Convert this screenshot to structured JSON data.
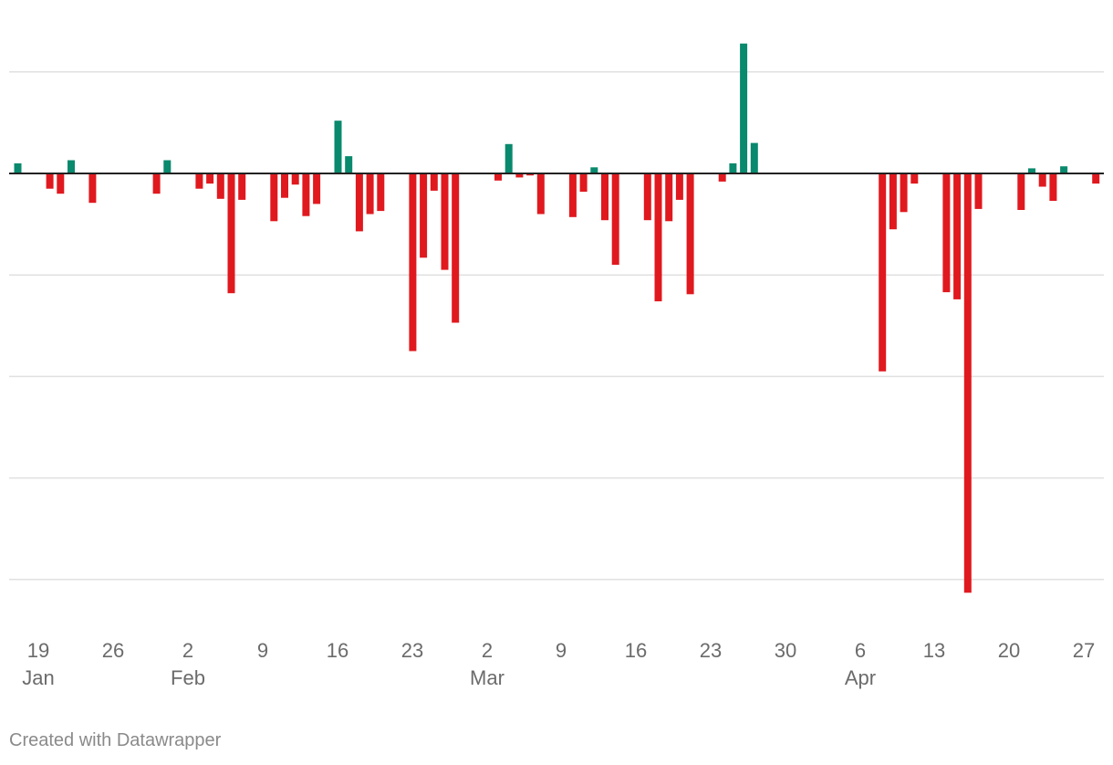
{
  "chart_data": {
    "type": "bar",
    "x_axis": {
      "ticks": [
        {
          "day": "19",
          "month": "Jan"
        },
        {
          "day": "26",
          "month": ""
        },
        {
          "day": "2",
          "month": "Feb"
        },
        {
          "day": "9",
          "month": ""
        },
        {
          "day": "16",
          "month": ""
        },
        {
          "day": "23",
          "month": ""
        },
        {
          "day": "2",
          "month": "Mar"
        },
        {
          "day": "9",
          "month": ""
        },
        {
          "day": "16",
          "month": ""
        },
        {
          "day": "23",
          "month": ""
        },
        {
          "day": "30",
          "month": ""
        },
        {
          "day": "6",
          "month": "Apr"
        },
        {
          "day": "13",
          "month": ""
        },
        {
          "day": "20",
          "month": ""
        },
        {
          "day": "27",
          "month": ""
        }
      ],
      "range": [
        "2020-01-18",
        "2020-04-28"
      ]
    },
    "y_axis": {
      "ylim": [
        -4.1,
        1.0
      ],
      "gridlines": [
        1,
        0,
        -1,
        -2,
        -3,
        -4
      ],
      "tick_labels_visible": false
    },
    "grid": true,
    "colors": {
      "positive": "#09896d",
      "negative": "#e0191f",
      "grid": "#e0e0e0",
      "zero_line": "#222222"
    },
    "series": [
      {
        "values": [
          {
            "date": "2020-01-18",
            "value": 0.1
          },
          {
            "date": "2020-01-21",
            "value": -0.15
          },
          {
            "date": "2020-01-22",
            "value": -0.2
          },
          {
            "date": "2020-01-23",
            "value": 0.13
          },
          {
            "date": "2020-01-25",
            "value": -0.29
          },
          {
            "date": "2020-01-31",
            "value": -0.2
          },
          {
            "date": "2020-02-01",
            "value": 0.13
          },
          {
            "date": "2020-02-04",
            "value": -0.15
          },
          {
            "date": "2020-02-05",
            "value": -0.1
          },
          {
            "date": "2020-02-06",
            "value": -0.25
          },
          {
            "date": "2020-02-07",
            "value": -1.18
          },
          {
            "date": "2020-02-08",
            "value": -0.26
          },
          {
            "date": "2020-02-11",
            "value": -0.47
          },
          {
            "date": "2020-02-12",
            "value": -0.24
          },
          {
            "date": "2020-02-13",
            "value": -0.11
          },
          {
            "date": "2020-02-14",
            "value": -0.42
          },
          {
            "date": "2020-02-15",
            "value": -0.3
          },
          {
            "date": "2020-02-17",
            "value": 0.52
          },
          {
            "date": "2020-02-18",
            "value": 0.17
          },
          {
            "date": "2020-02-19",
            "value": -0.57
          },
          {
            "date": "2020-02-20",
            "value": -0.4
          },
          {
            "date": "2020-02-21",
            "value": -0.37
          },
          {
            "date": "2020-02-24",
            "value": -1.75
          },
          {
            "date": "2020-02-25",
            "value": -0.83
          },
          {
            "date": "2020-02-26",
            "value": -0.17
          },
          {
            "date": "2020-02-27",
            "value": -0.95
          },
          {
            "date": "2020-02-28",
            "value": -1.47
          },
          {
            "date": "2020-03-03",
            "value": -0.07
          },
          {
            "date": "2020-03-04",
            "value": 0.29
          },
          {
            "date": "2020-03-05",
            "value": -0.04
          },
          {
            "date": "2020-03-06",
            "value": -0.02
          },
          {
            "date": "2020-03-07",
            "value": -0.4
          },
          {
            "date": "2020-03-10",
            "value": -0.43
          },
          {
            "date": "2020-03-11",
            "value": -0.18
          },
          {
            "date": "2020-03-12",
            "value": 0.06
          },
          {
            "date": "2020-03-13",
            "value": -0.46
          },
          {
            "date": "2020-03-14",
            "value": -0.9
          },
          {
            "date": "2020-03-17",
            "value": -0.46
          },
          {
            "date": "2020-03-18",
            "value": -1.26
          },
          {
            "date": "2020-03-19",
            "value": -0.47
          },
          {
            "date": "2020-03-20",
            "value": -0.26
          },
          {
            "date": "2020-03-21",
            "value": -1.19
          },
          {
            "date": "2020-03-24",
            "value": -0.08
          },
          {
            "date": "2020-03-25",
            "value": 0.1
          },
          {
            "date": "2020-03-26",
            "value": 1.28
          },
          {
            "date": "2020-03-27",
            "value": 0.3
          },
          {
            "date": "2020-04-08",
            "value": -1.95
          },
          {
            "date": "2020-04-09",
            "value": -0.55
          },
          {
            "date": "2020-04-10",
            "value": -0.38
          },
          {
            "date": "2020-04-11",
            "value": -0.1
          },
          {
            "date": "2020-04-14",
            "value": -1.17
          },
          {
            "date": "2020-04-15",
            "value": -1.24
          },
          {
            "date": "2020-04-16",
            "value": -4.13
          },
          {
            "date": "2020-04-17",
            "value": -0.35
          },
          {
            "date": "2020-04-21",
            "value": -0.36
          },
          {
            "date": "2020-04-22",
            "value": 0.05
          },
          {
            "date": "2020-04-23",
            "value": -0.13
          },
          {
            "date": "2020-04-24",
            "value": -0.27
          },
          {
            "date": "2020-04-25",
            "value": 0.07
          },
          {
            "date": "2020-04-28",
            "value": -0.1
          }
        ]
      }
    ]
  },
  "footer": {
    "credit": "Created with Datawrapper"
  }
}
